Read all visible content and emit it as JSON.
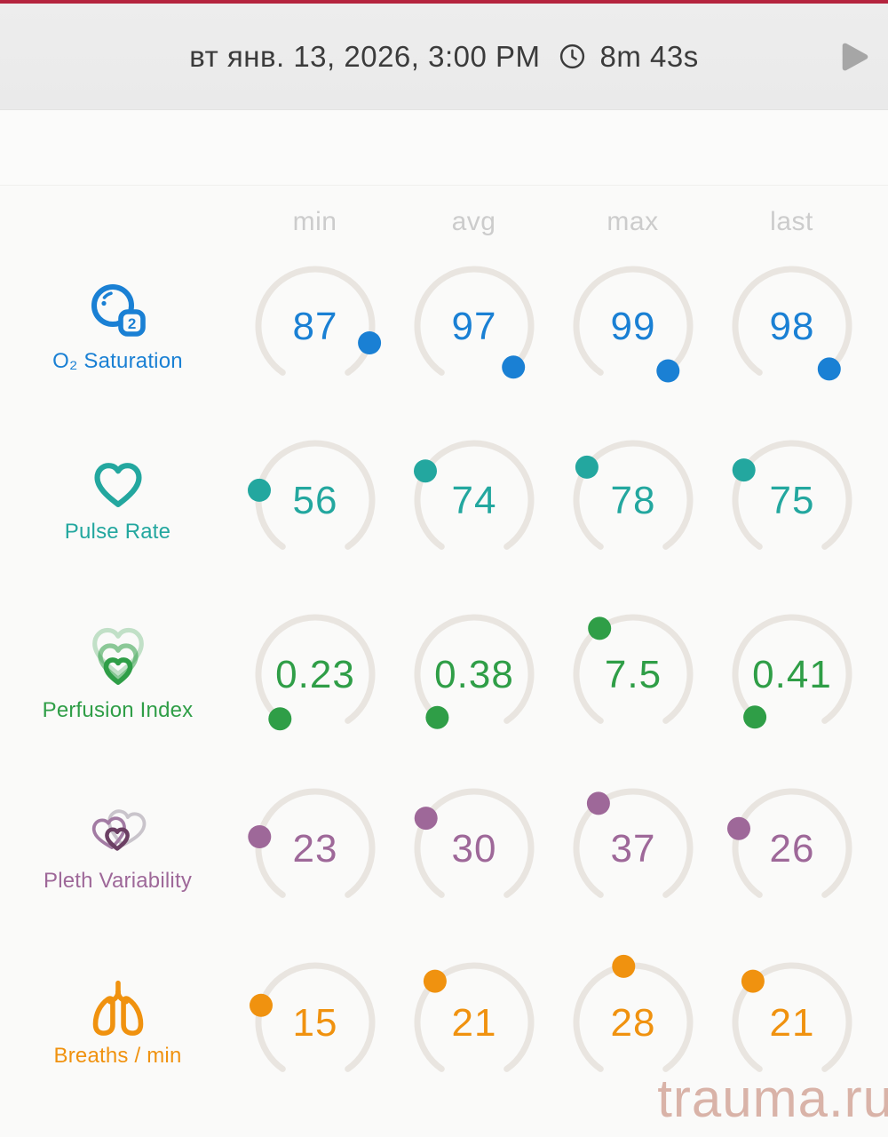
{
  "header": {
    "date": "вт янв. 13, 2026, 3:00 PM",
    "duration": "8m 43s"
  },
  "columns": [
    "min",
    "avg",
    "max",
    "last"
  ],
  "watermark": "trauma.ru",
  "colors": {
    "accent_bar": "#b5243e",
    "header_text": "#3b3b3b",
    "play_icon": "#a6a6a6",
    "column_header_text": "#cccccc",
    "arc": "#e9e5e0",
    "watermark": "#d9b3a8",
    "pleth_icon_back": "#c9c4cb",
    "pleth_icon_mid": "#a27ba3",
    "pleth_icon_front": "#6b3f63"
  },
  "chart_data": {
    "type": "gauge-table",
    "columns": [
      "min",
      "avg",
      "max",
      "last"
    ],
    "gauge_arc": {
      "start_deg_from_top": 215,
      "span_deg": 290
    },
    "rows": [
      {
        "label": "O₂ Saturation",
        "icon": "o2-saturation-icon",
        "color": "#1a80d4",
        "range": [
          0,
          100
        ],
        "values": [
          87,
          97,
          99,
          98
        ]
      },
      {
        "label": "Pulse Rate",
        "icon": "heart-icon",
        "color": "#23a79f",
        "range": [
          0,
          250
        ],
        "values": [
          56,
          74,
          78,
          75
        ]
      },
      {
        "label": "Perfusion Index",
        "icon": "perfusion-index-icon",
        "color": "#2f9e47",
        "range": [
          0,
          20
        ],
        "values": [
          0.23,
          0.38,
          7.5,
          0.41
        ]
      },
      {
        "label": "Pleth Variability",
        "icon": "pleth-variability-icon",
        "color": "#9e6899",
        "range": [
          0,
          100
        ],
        "values": [
          23,
          30,
          37,
          26
        ]
      },
      {
        "label": "Breaths / min",
        "icon": "breaths-icon",
        "color": "#f0920f",
        "range": [
          0,
          60
        ],
        "values": [
          15,
          21,
          28,
          21
        ]
      }
    ]
  }
}
